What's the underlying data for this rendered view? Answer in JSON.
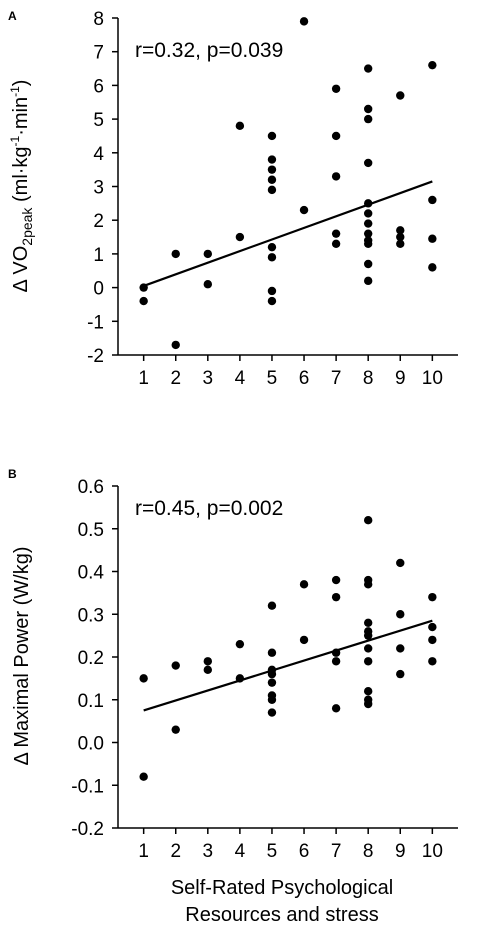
{
  "chart_data": [
    {
      "type": "scatter",
      "panel_label": "A",
      "annotation": "r=0.32, p=0.039",
      "ylabel_parts": {
        "delta": "Δ",
        "vo": "VO",
        "vo_sub": "2peak",
        "units_open": " (ml·kg",
        "units_sup1": "-1",
        "units_mid": "·min",
        "units_sup2": "-1",
        "units_close": ")"
      },
      "xlim": [
        0.2,
        10.8
      ],
      "ylim": [
        -2,
        8
      ],
      "xticks": [
        "1",
        "2",
        "3",
        "4",
        "5",
        "6",
        "7",
        "8",
        "9",
        "10"
      ],
      "yticks": [
        "8",
        "7",
        "6",
        "5",
        "4",
        "3",
        "2",
        "1",
        "0",
        "-1",
        "-2"
      ],
      "points": [
        [
          1,
          0.0
        ],
        [
          1,
          -0.4
        ],
        [
          2,
          1.0
        ],
        [
          2,
          -1.7
        ],
        [
          3,
          1.0
        ],
        [
          3,
          0.1
        ],
        [
          4,
          4.8
        ],
        [
          4,
          1.5
        ],
        [
          5,
          4.5
        ],
        [
          5,
          3.8
        ],
        [
          5,
          3.5
        ],
        [
          5,
          3.2
        ],
        [
          5,
          2.9
        ],
        [
          5,
          1.2
        ],
        [
          5,
          0.9
        ],
        [
          5,
          -0.1
        ],
        [
          5,
          -0.4
        ],
        [
          6,
          7.9
        ],
        [
          6,
          2.3
        ],
        [
          7,
          5.9
        ],
        [
          7,
          4.5
        ],
        [
          7,
          3.3
        ],
        [
          7,
          1.6
        ],
        [
          7,
          1.3
        ],
        [
          8,
          6.5
        ],
        [
          8,
          5.3
        ],
        [
          8,
          5.0
        ],
        [
          8,
          3.7
        ],
        [
          8,
          2.5
        ],
        [
          8,
          2.2
        ],
        [
          8,
          1.9
        ],
        [
          8,
          1.6
        ],
        [
          8,
          1.4
        ],
        [
          8,
          1.3
        ],
        [
          8,
          0.7
        ],
        [
          8,
          0.2
        ],
        [
          9,
          5.7
        ],
        [
          9,
          1.7
        ],
        [
          9,
          1.5
        ],
        [
          9,
          1.3
        ],
        [
          10,
          6.6
        ],
        [
          10,
          2.6
        ],
        [
          10,
          1.45
        ],
        [
          10,
          0.6
        ]
      ],
      "trendline": {
        "x": [
          1,
          10
        ],
        "y": [
          0.05,
          3.15
        ]
      }
    },
    {
      "type": "scatter",
      "panel_label": "B",
      "annotation": "r=0.45, p=0.002",
      "ylabel": "Δ Maximal Power  (W/kg)",
      "xlabel_lines": [
        "Self-Rated Psychological",
        "Resources and stress"
      ],
      "xlim": [
        0.2,
        10.8
      ],
      "ylim": [
        -0.2,
        0.6
      ],
      "xticks": [
        "1",
        "2",
        "3",
        "4",
        "5",
        "6",
        "7",
        "8",
        "9",
        "10"
      ],
      "yticks": [
        "0.6",
        "0.5",
        "0.4",
        "0.3",
        "0.2",
        "0.1",
        "0.0",
        "-0.1",
        "-0.2"
      ],
      "points": [
        [
          1,
          0.15
        ],
        [
          1,
          -0.08
        ],
        [
          2,
          0.18
        ],
        [
          2,
          0.03
        ],
        [
          3,
          0.19
        ],
        [
          3,
          0.17
        ],
        [
          4,
          0.23
        ],
        [
          4,
          0.15
        ],
        [
          5,
          0.32
        ],
        [
          5,
          0.21
        ],
        [
          5,
          0.17
        ],
        [
          5,
          0.16
        ],
        [
          5,
          0.14
        ],
        [
          5,
          0.11
        ],
        [
          5,
          0.1
        ],
        [
          5,
          0.07
        ],
        [
          6,
          0.37
        ],
        [
          6,
          0.24
        ],
        [
          7,
          0.38
        ],
        [
          7,
          0.34
        ],
        [
          7,
          0.21
        ],
        [
          7,
          0.19
        ],
        [
          7,
          0.08
        ],
        [
          8,
          0.52
        ],
        [
          8,
          0.38
        ],
        [
          8,
          0.37
        ],
        [
          8,
          0.28
        ],
        [
          8,
          0.26
        ],
        [
          8,
          0.25
        ],
        [
          8,
          0.22
        ],
        [
          8,
          0.19
        ],
        [
          8,
          0.12
        ],
        [
          8,
          0.1
        ],
        [
          8,
          0.09
        ],
        [
          9,
          0.42
        ],
        [
          9,
          0.3
        ],
        [
          9,
          0.22
        ],
        [
          9,
          0.16
        ],
        [
          10,
          0.34
        ],
        [
          10,
          0.27
        ],
        [
          10,
          0.24
        ],
        [
          10,
          0.19
        ]
      ],
      "trendline": {
        "x": [
          1,
          10
        ],
        "y": [
          0.075,
          0.285
        ]
      }
    }
  ]
}
